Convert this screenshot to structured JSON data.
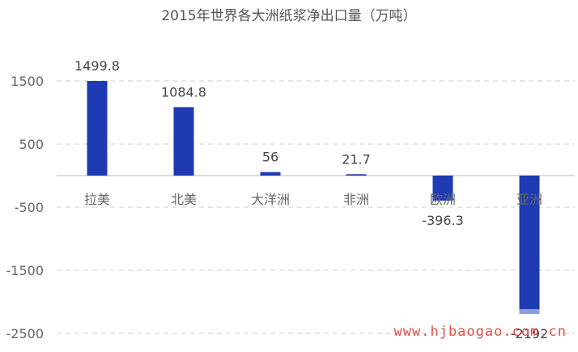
{
  "colors": {
    "bar": "#1F3BB3",
    "bar_tip": "#8C9CE0"
  },
  "watermark": "www.hjbaogao.com.cn",
  "chart_data": {
    "type": "bar",
    "title": "2015年世界各大洲纸浆净出口量（万吨）",
    "categories": [
      "拉美",
      "北美",
      "大洋洲",
      "非洲",
      "欧洲",
      "亚洲"
    ],
    "values": [
      1499.8,
      1084.8,
      56,
      21.7,
      -396.3,
      -2192
    ],
    "value_labels": [
      "1499.8",
      "1084.8",
      "56",
      "21.7",
      "-396.3",
      "-2192"
    ],
    "yticks": [
      1500,
      500,
      -500,
      -1500,
      -2500
    ],
    "ytick_labels": [
      "1500",
      "500",
      "-500",
      "-1500",
      "-2500"
    ],
    "ylim": [
      -2500,
      1500
    ],
    "xlabel": "",
    "ylabel": "",
    "grid": true,
    "legend": "none"
  }
}
